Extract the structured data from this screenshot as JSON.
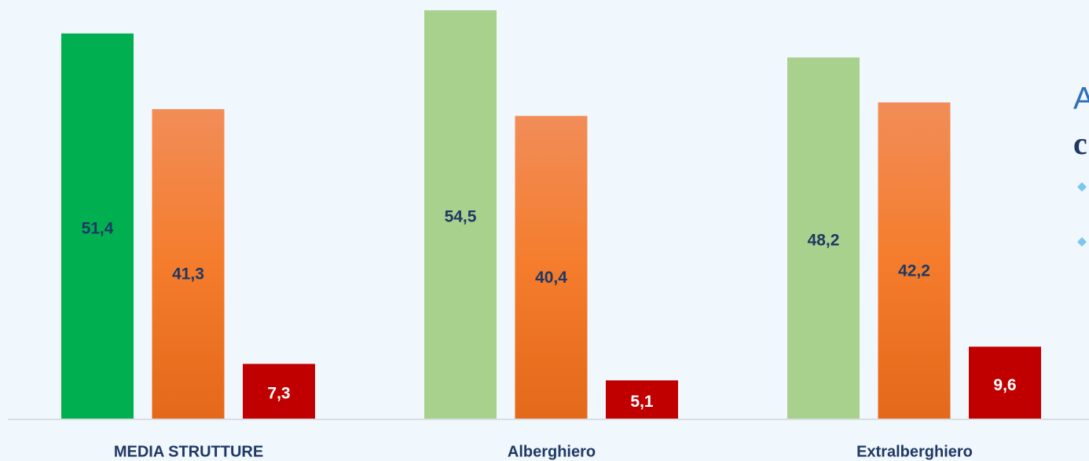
{
  "chart_data": {
    "type": "bar",
    "categories": [
      "MEDIA STRUTTURE",
      "Alberghiero",
      "Extralberghiero"
    ],
    "series": [
      {
        "color": "#a9d18e",
        "colors": [
          "#00b050",
          "#a9d18e",
          "#a9d18e"
        ],
        "values": [
          51.4,
          54.5,
          48.2
        ],
        "value_labels": [
          "51,4",
          "54,5",
          "48,2"
        ]
      },
      {
        "color": "#f07a30",
        "values": [
          41.3,
          40.4,
          42.2
        ],
        "value_labels": [
          "41,3",
          "40,4",
          "42,2"
        ]
      },
      {
        "color": "#c00000",
        "values": [
          7.3,
          5.1,
          9.6
        ],
        "value_labels": [
          "7,3",
          "5,1",
          "9,6"
        ]
      }
    ],
    "ylim": [
      0,
      55
    ]
  },
  "side_text": [
    "A",
    "c"
  ]
}
